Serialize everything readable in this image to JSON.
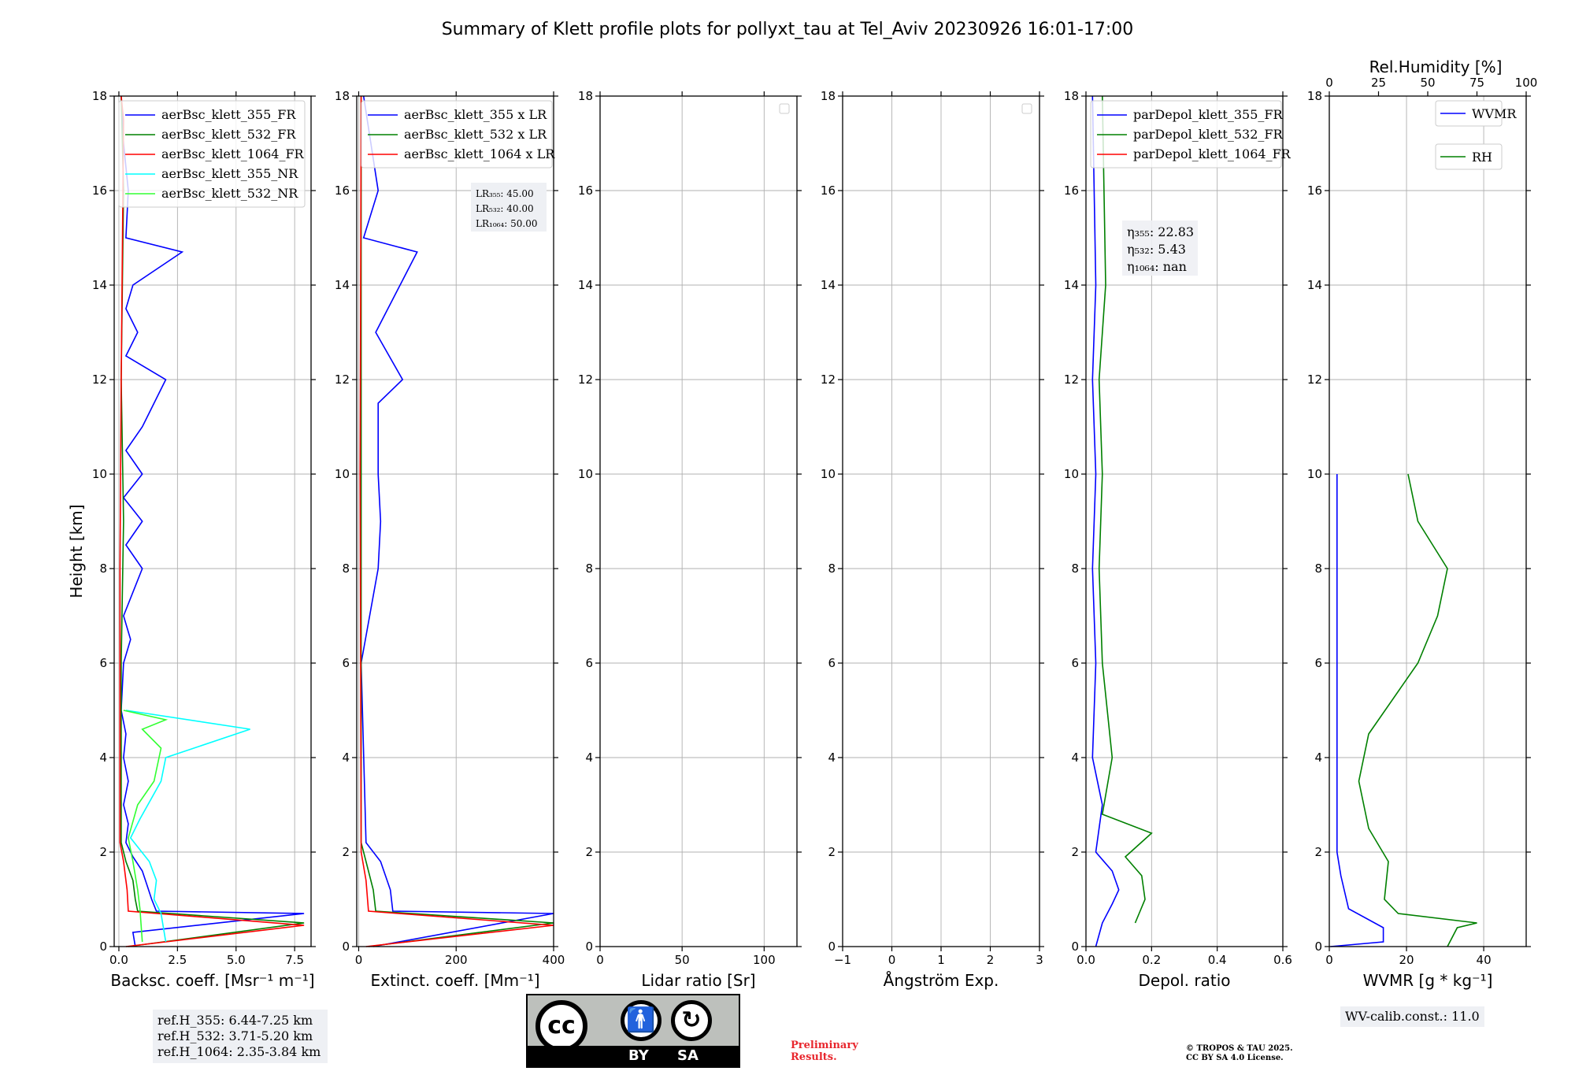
{
  "chart_data": {
    "type": "line",
    "title": "Summary of Klett profile plots for pollyxt_tau at Tel_Aviv 20230926 16:01-17:00",
    "ylabel": "Height [km]",
    "ylim": [
      0,
      18
    ],
    "yticks": [
      "0",
      "2",
      "4",
      "6",
      "8",
      "10",
      "12",
      "14",
      "16",
      "18"
    ],
    "panels": [
      {
        "id": "bsc",
        "xlabel": "Backsc. coeff. [Msr⁻¹ m⁻¹]",
        "xlim": [
          -0.2,
          8.2
        ],
        "xticks": [
          {
            "v": 0,
            "t": "0.0"
          },
          {
            "v": 2.5,
            "t": "2.5"
          },
          {
            "v": 5,
            "t": "5.0"
          },
          {
            "v": 7.5,
            "t": "7.5"
          }
        ],
        "legend": [
          "aerBsc_klett_355_FR",
          "aerBsc_klett_532_FR",
          "aerBsc_klett_1064_FR",
          "aerBsc_klett_355_NR",
          "aerBsc_klett_532_NR"
        ],
        "legend_colors": [
          "#0000ff",
          "#008000",
          "#ff0000",
          "#00ffff",
          "#32ff32"
        ],
        "notes": []
      },
      {
        "id": "ext",
        "xlabel": "Extinct. coeff. [Mm⁻¹]",
        "xlim": [
          -4,
          400
        ],
        "xticks": [
          {
            "v": 0,
            "t": "0"
          },
          {
            "v": 200,
            "t": "200"
          },
          {
            "v": 400,
            "t": "400"
          }
        ],
        "legend": [
          "aerBsc_klett_355 x LR",
          "aerBsc_klett_532 x LR",
          "aerBsc_klett_1064 x LR"
        ],
        "legend_colors": [
          "#0000ff",
          "#008000",
          "#ff0000"
        ],
        "notes": [
          "LR₃₅₅: 45.00",
          "LR₅₃₂: 40.00",
          "LR₁₀₆₄: 50.00"
        ]
      },
      {
        "id": "lr",
        "xlabel": "Lidar ratio [Sr]",
        "xlim": [
          0,
          120
        ],
        "xticks": [
          {
            "v": 0,
            "t": "0"
          },
          {
            "v": 50,
            "t": "50"
          },
          {
            "v": 100,
            "t": "100"
          }
        ],
        "legend": [],
        "legend_colors": [],
        "notes": []
      },
      {
        "id": "ang",
        "xlabel": "Ångström Exp.",
        "xlim": [
          -1,
          3
        ],
        "xticks": [
          {
            "v": -1,
            "t": "−1"
          },
          {
            "v": 0,
            "t": "0"
          },
          {
            "v": 1,
            "t": "1"
          },
          {
            "v": 2,
            "t": "2"
          },
          {
            "v": 3,
            "t": "3"
          }
        ],
        "legend": [],
        "legend_colors": [],
        "notes": []
      },
      {
        "id": "dep",
        "xlabel": "Depol. ratio",
        "xlim": [
          0,
          0.6
        ],
        "xticks": [
          {
            "v": 0,
            "t": "0.0"
          },
          {
            "v": 0.2,
            "t": "0.2"
          },
          {
            "v": 0.4,
            "t": "0.4"
          },
          {
            "v": 0.6,
            "t": "0.6"
          }
        ],
        "legend": [
          "parDepol_klett_355_FR",
          "parDepol_klett_532_FR",
          "parDepol_klett_1064_FR"
        ],
        "legend_colors": [
          "#0000ff",
          "#008000",
          "#ff0000"
        ],
        "notes": [
          "η₃₅₅: 22.83",
          "η₅₃₂: 5.43",
          "η₁₀₆₄: nan"
        ]
      },
      {
        "id": "wv",
        "xlabel": "WVMR [g * kg⁻¹]",
        "xlim": [
          0,
          51
        ],
        "xticks": [
          {
            "v": 0,
            "t": "0"
          },
          {
            "v": 20,
            "t": "20"
          },
          {
            "v": 40,
            "t": "40"
          }
        ],
        "top_xlabel": "Rel.Humidity [%]",
        "top_xlim": [
          0,
          100
        ],
        "top_xticks": [
          {
            "v": 0,
            "t": "0"
          },
          {
            "v": 25,
            "t": "25"
          },
          {
            "v": 50,
            "t": "50"
          },
          {
            "v": 75,
            "t": "75"
          },
          {
            "v": 100,
            "t": "100"
          }
        ],
        "legend": [
          "WVMR",
          "RH"
        ],
        "legend_colors": [
          "#0000ff",
          "#008000"
        ],
        "notes": []
      }
    ],
    "series_profiles": [
      {
        "panel": "bsc",
        "name": "aerBsc_klett_355_FR",
        "color": "#0000ff",
        "points": [
          [
            0.7,
            0.0
          ],
          [
            0.6,
            0.3
          ],
          [
            7.9,
            0.7
          ],
          [
            1.6,
            0.75
          ],
          [
            1.4,
            1.0
          ],
          [
            1.2,
            1.3
          ],
          [
            1.0,
            1.6
          ],
          [
            0.6,
            1.9
          ],
          [
            0.3,
            2.2
          ],
          [
            0.4,
            2.6
          ],
          [
            0.2,
            3.0
          ],
          [
            0.4,
            3.5
          ],
          [
            0.2,
            4.0
          ],
          [
            0.3,
            4.5
          ],
          [
            0.1,
            5.0
          ],
          [
            0.2,
            6.0
          ],
          [
            0.5,
            6.5
          ],
          [
            0.2,
            7.0
          ],
          [
            1.0,
            8.0
          ],
          [
            0.3,
            8.5
          ],
          [
            1.0,
            9.0
          ],
          [
            0.2,
            9.5
          ],
          [
            1.0,
            10.0
          ],
          [
            0.3,
            10.5
          ],
          [
            1.0,
            11.0
          ],
          [
            1.5,
            11.5
          ],
          [
            2.0,
            12.0
          ],
          [
            0.3,
            12.5
          ],
          [
            0.8,
            13.0
          ],
          [
            0.3,
            13.5
          ],
          [
            0.6,
            14.0
          ],
          [
            2.7,
            14.7
          ],
          [
            0.3,
            15.0
          ],
          [
            0.4,
            16.0
          ],
          [
            0.2,
            17.0
          ],
          [
            0.1,
            18.0
          ]
        ]
      },
      {
        "panel": "bsc",
        "name": "aerBsc_klett_532_FR",
        "color": "#008000",
        "points": [
          [
            0.4,
            0.0
          ],
          [
            7.9,
            0.5
          ],
          [
            0.8,
            0.75
          ],
          [
            0.7,
            1.0
          ],
          [
            0.6,
            1.4
          ],
          [
            0.3,
            1.8
          ],
          [
            0.1,
            2.2
          ],
          [
            0.1,
            6.0
          ],
          [
            0.2,
            9.0
          ],
          [
            0.1,
            12.0
          ],
          [
            0.2,
            16.0
          ],
          [
            0.1,
            18.0
          ]
        ]
      },
      {
        "panel": "bsc",
        "name": "aerBsc_klett_1064_FR",
        "color": "#ff0000",
        "points": [
          [
            0.3,
            0.0
          ],
          [
            7.9,
            0.45
          ],
          [
            0.4,
            0.75
          ],
          [
            0.35,
            1.2
          ],
          [
            0.2,
            1.8
          ],
          [
            0.05,
            2.2
          ],
          [
            0.05,
            8.0
          ],
          [
            0.1,
            12.0
          ],
          [
            0.2,
            17.5
          ],
          [
            0.1,
            18.0
          ]
        ]
      },
      {
        "panel": "bsc",
        "name": "aerBsc_klett_355_NR",
        "color": "#00ffff",
        "points": [
          [
            2.0,
            0.1
          ],
          [
            1.8,
            0.7
          ],
          [
            1.5,
            1.0
          ],
          [
            1.6,
            1.4
          ],
          [
            1.3,
            1.8
          ],
          [
            0.5,
            2.3
          ],
          [
            0.9,
            2.7
          ],
          [
            1.8,
            3.5
          ],
          [
            2.0,
            4.0
          ],
          [
            5.6,
            4.6
          ],
          [
            0.3,
            5.0
          ]
        ]
      },
      {
        "panel": "bsc",
        "name": "aerBsc_klett_532_NR",
        "color": "#32ff32",
        "points": [
          [
            1.0,
            0.1
          ],
          [
            0.9,
            0.8
          ],
          [
            0.8,
            1.2
          ],
          [
            0.6,
            1.8
          ],
          [
            0.4,
            2.3
          ],
          [
            0.8,
            3.0
          ],
          [
            1.5,
            3.5
          ],
          [
            1.8,
            4.2
          ],
          [
            1.0,
            4.6
          ],
          [
            2.0,
            4.8
          ],
          [
            0.2,
            5.0
          ]
        ]
      },
      {
        "panel": "ext",
        "name": "aerBsc_klett_355 x LR",
        "color": "#0000ff",
        "points": [
          [
            30,
            0.0
          ],
          [
            400,
            0.7
          ],
          [
            70,
            0.75
          ],
          [
            65,
            1.2
          ],
          [
            45,
            1.8
          ],
          [
            15,
            2.2
          ],
          [
            5,
            6.0
          ],
          [
            40,
            8.0
          ],
          [
            45,
            9.0
          ],
          [
            40,
            10.0
          ],
          [
            40,
            11.5
          ],
          [
            90,
            12.0
          ],
          [
            35,
            13.0
          ],
          [
            120,
            14.7
          ],
          [
            10,
            15.0
          ],
          [
            40,
            16.0
          ],
          [
            10,
            18.0
          ]
        ]
      },
      {
        "panel": "ext",
        "name": "aerBsc_klett_532 x LR",
        "color": "#008000",
        "points": [
          [
            20,
            0.0
          ],
          [
            400,
            0.5
          ],
          [
            35,
            0.75
          ],
          [
            30,
            1.2
          ],
          [
            15,
            1.8
          ],
          [
            5,
            2.2
          ],
          [
            5,
            12.0
          ],
          [
            5,
            18.0
          ]
        ]
      },
      {
        "panel": "ext",
        "name": "aerBsc_klett_1064 x LR",
        "color": "#ff0000",
        "points": [
          [
            15,
            0.0
          ],
          [
            400,
            0.45
          ],
          [
            20,
            0.75
          ],
          [
            15,
            1.4
          ],
          [
            5,
            2.0
          ],
          [
            3,
            10.0
          ],
          [
            5,
            18.0
          ]
        ]
      },
      {
        "panel": "dep",
        "name": "parDepol_klett_355_FR",
        "color": "#0000ff",
        "points": [
          [
            0.03,
            0.0
          ],
          [
            0.05,
            0.5
          ],
          [
            0.08,
            0.9
          ],
          [
            0.1,
            1.2
          ],
          [
            0.08,
            1.6
          ],
          [
            0.03,
            2.0
          ],
          [
            0.05,
            3.0
          ],
          [
            0.02,
            4.0
          ],
          [
            0.03,
            6.0
          ],
          [
            0.02,
            8.0
          ],
          [
            0.03,
            10.0
          ],
          [
            0.02,
            12.0
          ],
          [
            0.03,
            14.0
          ],
          [
            0.02,
            18.0
          ]
        ]
      },
      {
        "panel": "dep",
        "name": "parDepol_klett_532_FR",
        "color": "#008000",
        "points": [
          [
            0.15,
            0.5
          ],
          [
            0.18,
            1.0
          ],
          [
            0.17,
            1.5
          ],
          [
            0.12,
            1.9
          ],
          [
            0.2,
            2.4
          ],
          [
            0.05,
            2.8
          ],
          [
            0.08,
            4.0
          ],
          [
            0.05,
            6.0
          ],
          [
            0.04,
            8.0
          ],
          [
            0.05,
            10.0
          ],
          [
            0.04,
            12.0
          ],
          [
            0.06,
            14.0
          ],
          [
            0.05,
            18.0
          ]
        ]
      },
      {
        "panel": "wv",
        "name": "WVMR",
        "color": "#0000ff",
        "points": [
          [
            0.3,
            0.0
          ],
          [
            14,
            0.1
          ],
          [
            14,
            0.4
          ],
          [
            5,
            0.8
          ],
          [
            3,
            1.5
          ],
          [
            2,
            2.0
          ],
          [
            2,
            4.0
          ],
          [
            2,
            6.0
          ],
          [
            2,
            8.0
          ],
          [
            2,
            10.0
          ]
        ]
      },
      {
        "panel": "wv",
        "name": "RH",
        "color": "#008000",
        "points": [
          [
            60,
            0.0
          ],
          [
            65,
            0.4
          ],
          [
            75,
            0.5
          ],
          [
            35,
            0.7
          ],
          [
            28,
            1.0
          ],
          [
            30,
            1.8
          ],
          [
            20,
            2.5
          ],
          [
            15,
            3.5
          ],
          [
            20,
            4.5
          ],
          [
            45,
            6.0
          ],
          [
            55,
            7.0
          ],
          [
            60,
            8.0
          ],
          [
            45,
            9.0
          ],
          [
            40,
            10.0
          ]
        ]
      }
    ],
    "ref_heights": [
      "ref.H_355: 6.44-7.25 km",
      "ref.H_532: 3.71-5.20 km",
      "ref.H_1064: 2.35-3.84 km"
    ],
    "wv_calib": "WV-calib.const.: 11.0",
    "preliminary": [
      "Preliminary",
      "Results."
    ],
    "copyright": [
      "© TROPOS & TAU 2025.",
      "CC BY SA 4.0 License."
    ],
    "license_badge": [
      "BY",
      "SA"
    ]
  },
  "colors": {
    "blue": "#0000ff",
    "green": "#008000",
    "red": "#ff0000",
    "prelim": "#e8262d"
  }
}
